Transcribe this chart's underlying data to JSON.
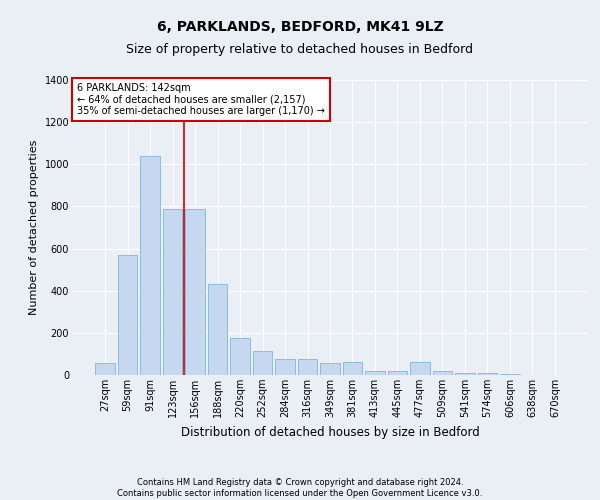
{
  "title1": "6, PARKLANDS, BEDFORD, MK41 9LZ",
  "title2": "Size of property relative to detached houses in Bedford",
  "xlabel": "Distribution of detached houses by size in Bedford",
  "ylabel": "Number of detached properties",
  "categories": [
    "27sqm",
    "59sqm",
    "91sqm",
    "123sqm",
    "156sqm",
    "188sqm",
    "220sqm",
    "252sqm",
    "284sqm",
    "316sqm",
    "349sqm",
    "381sqm",
    "413sqm",
    "445sqm",
    "477sqm",
    "509sqm",
    "541sqm",
    "574sqm",
    "606sqm",
    "638sqm",
    "670sqm"
  ],
  "values": [
    55,
    570,
    1040,
    790,
    790,
    430,
    175,
    115,
    75,
    75,
    55,
    60,
    20,
    20,
    60,
    20,
    10,
    10,
    5,
    0,
    0
  ],
  "bar_color": "#c5d8ef",
  "bar_edge_color": "#6aaed6",
  "bg_color": "#eaeef5",
  "plot_bg_color": "#eaeef5",
  "grid_color": "#ffffff",
  "vline_x_idx": 3,
  "vline_color": "#cc0000",
  "annotation_text": "6 PARKLANDS: 142sqm\n← 64% of detached houses are smaller (2,157)\n35% of semi-detached houses are larger (1,170) →",
  "annotation_box_color": "white",
  "annotation_box_edge_color": "#cc0000",
  "ylim": [
    0,
    1400
  ],
  "yticks": [
    0,
    200,
    400,
    600,
    800,
    1000,
    1200,
    1400
  ],
  "footnote": "Contains HM Land Registry data © Crown copyright and database right 2024.\nContains public sector information licensed under the Open Government Licence v3.0.",
  "title1_fontsize": 10,
  "title2_fontsize": 9,
  "xlabel_fontsize": 8.5,
  "ylabel_fontsize": 8,
  "tick_fontsize": 7,
  "annot_fontsize": 7,
  "footnote_fontsize": 6
}
